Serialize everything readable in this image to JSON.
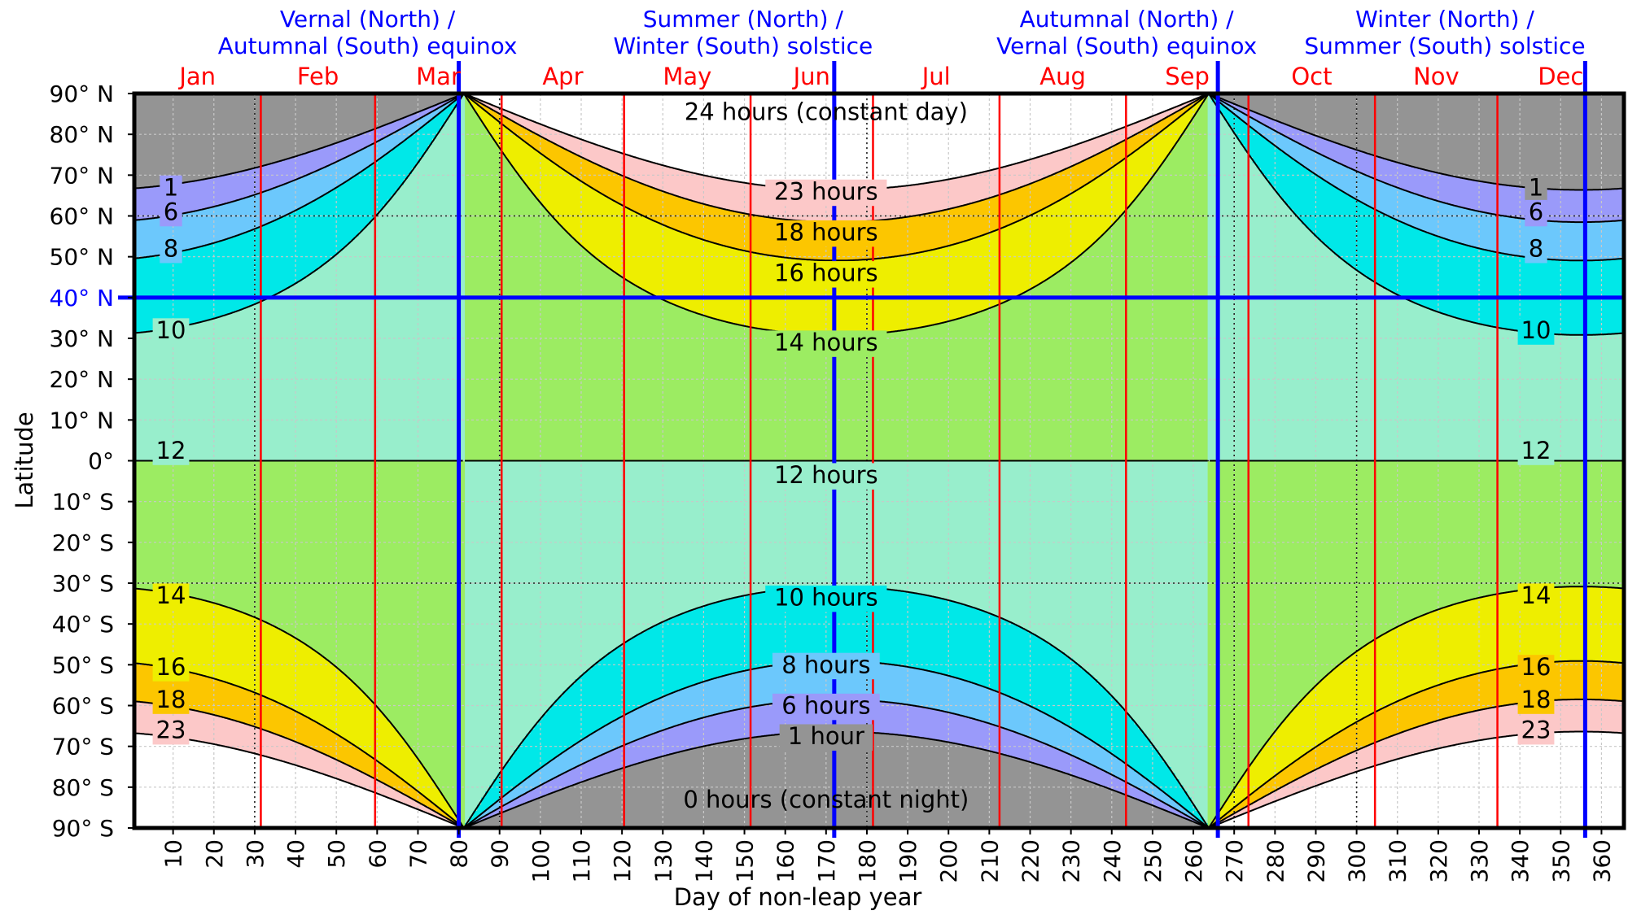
{
  "chart_data": {
    "type": "area",
    "title": "",
    "xlabel": "Day of non-leap year",
    "ylabel": "Latitude",
    "xlim": [
      1,
      365
    ],
    "ylim": [
      -90,
      90
    ],
    "x_ticks": [
      10,
      20,
      30,
      40,
      50,
      60,
      70,
      80,
      90,
      100,
      110,
      120,
      130,
      140,
      150,
      160,
      170,
      180,
      190,
      200,
      210,
      220,
      230,
      240,
      250,
      260,
      270,
      280,
      290,
      300,
      310,
      320,
      330,
      340,
      350,
      360
    ],
    "y_ticks": [
      {
        "value": 90,
        "label": "90° N"
      },
      {
        "value": 80,
        "label": "80° N"
      },
      {
        "value": 70,
        "label": "70° N"
      },
      {
        "value": 60,
        "label": "60° N"
      },
      {
        "value": 50,
        "label": "50° N"
      },
      {
        "value": 40,
        "label": "40° N"
      },
      {
        "value": 30,
        "label": "30° N"
      },
      {
        "value": 20,
        "label": "20° N"
      },
      {
        "value": 10,
        "label": "10° N"
      },
      {
        "value": 0,
        "label": "0°"
      },
      {
        "value": -10,
        "label": "10° S"
      },
      {
        "value": -20,
        "label": "20° S"
      },
      {
        "value": -30,
        "label": "30° S"
      },
      {
        "value": -40,
        "label": "40° S"
      },
      {
        "value": -50,
        "label": "50° S"
      },
      {
        "value": -60,
        "label": "60° S"
      },
      {
        "value": -70,
        "label": "70° S"
      },
      {
        "value": -80,
        "label": "80° S"
      },
      {
        "value": -90,
        "label": "90° S"
      }
    ],
    "grid": true,
    "months": [
      {
        "label": "Jan",
        "start": 1
      },
      {
        "label": "Feb",
        "start": 32
      },
      {
        "label": "Mar",
        "start": 60
      },
      {
        "label": "Apr",
        "start": 91
      },
      {
        "label": "May",
        "start": 121
      },
      {
        "label": "Jun",
        "start": 152
      },
      {
        "label": "Jul",
        "start": 182
      },
      {
        "label": "Aug",
        "start": 213
      },
      {
        "label": "Sep",
        "start": 244
      },
      {
        "label": "Oct",
        "start": 274
      },
      {
        "label": "Nov",
        "start": 305
      },
      {
        "label": "Dec",
        "start": 335
      }
    ],
    "events": [
      {
        "day": 80,
        "line1": "Vernal (North) /",
        "line2": "Autumnal (South) equinox"
      },
      {
        "day": 172,
        "line1": "Summer (North) /",
        "line2": "Winter (South) solstice"
      },
      {
        "day": 266,
        "line1": "Autumnal (North) /",
        "line2": "Vernal (South) equinox"
      },
      {
        "day": 356,
        "line1": "Winter (North) /",
        "line2": "Summer (South) solstice"
      }
    ],
    "highlight_latitude": 40,
    "bands": [
      {
        "hours_min": 0,
        "hours_max": 1,
        "color": "#949494"
      },
      {
        "hours_min": 1,
        "hours_max": 6,
        "color": "#9a9afa"
      },
      {
        "hours_min": 6,
        "hours_max": 8,
        "color": "#6cc8fc"
      },
      {
        "hours_min": 8,
        "hours_max": 10,
        "color": "#00e8e8"
      },
      {
        "hours_min": 10,
        "hours_max": 12,
        "color": "#98eecc"
      },
      {
        "hours_min": 12,
        "hours_max": 14,
        "color": "#9cec62"
      },
      {
        "hours_min": 14,
        "hours_max": 16,
        "color": "#eeee00"
      },
      {
        "hours_min": 16,
        "hours_max": 18,
        "color": "#fcc600"
      },
      {
        "hours_min": 18,
        "hours_max": 23,
        "color": "#fcc8c8"
      },
      {
        "hours_min": 23,
        "hours_max": 24,
        "color": "#ffffff"
      }
    ],
    "contour_hours": [
      1,
      6,
      8,
      10,
      12,
      14,
      16,
      18,
      23
    ],
    "band_labels": [
      {
        "text": "24 hours (constant day)",
        "day": 172,
        "lat": 85.5
      },
      {
        "text": "23 hours",
        "day": 172,
        "lat": 66
      },
      {
        "text": "18 hours",
        "day": 172,
        "lat": 56
      },
      {
        "text": "16 hours",
        "day": 172,
        "lat": 46
      },
      {
        "text": "14 hours",
        "day": 172,
        "lat": 29
      },
      {
        "text": "12 hours",
        "day": 172,
        "lat": -3.5
      },
      {
        "text": "10 hours",
        "day": 172,
        "lat": -33.5
      },
      {
        "text": "8 hours",
        "day": 172,
        "lat": -50
      },
      {
        "text": "6 hours",
        "day": 172,
        "lat": -60
      },
      {
        "text": "1 hour",
        "day": 172,
        "lat": -67.5
      },
      {
        "text": "0 hours (constant night)",
        "day": 172,
        "lat": -83
      }
    ],
    "edge_labels_left": [
      {
        "text": "1",
        "lat": 67
      },
      {
        "text": "6",
        "lat": 61
      },
      {
        "text": "8",
        "lat": 52
      },
      {
        "text": "10",
        "lat": 32
      },
      {
        "text": "12",
        "lat": 2.5
      },
      {
        "text": "14",
        "lat": -33
      },
      {
        "text": "16",
        "lat": -50.5
      },
      {
        "text": "18",
        "lat": -58.5
      },
      {
        "text": "23",
        "lat": -66
      }
    ],
    "edge_labels_right": [
      {
        "text": "1",
        "lat": 67
      },
      {
        "text": "6",
        "lat": 61
      },
      {
        "text": "8",
        "lat": 52
      },
      {
        "text": "10",
        "lat": 32
      },
      {
        "text": "12",
        "lat": 2.5
      },
      {
        "text": "14",
        "lat": -33
      },
      {
        "text": "16",
        "lat": -50.5
      },
      {
        "text": "18",
        "lat": -58.5
      },
      {
        "text": "23",
        "lat": -66
      }
    ],
    "colors": {
      "month_line": "#ff0000",
      "event_line": "#0000ff",
      "highlight_line": "#0000ff",
      "contour": "#000000",
      "grid": "#c8c8c8",
      "frame": "#000000"
    }
  }
}
